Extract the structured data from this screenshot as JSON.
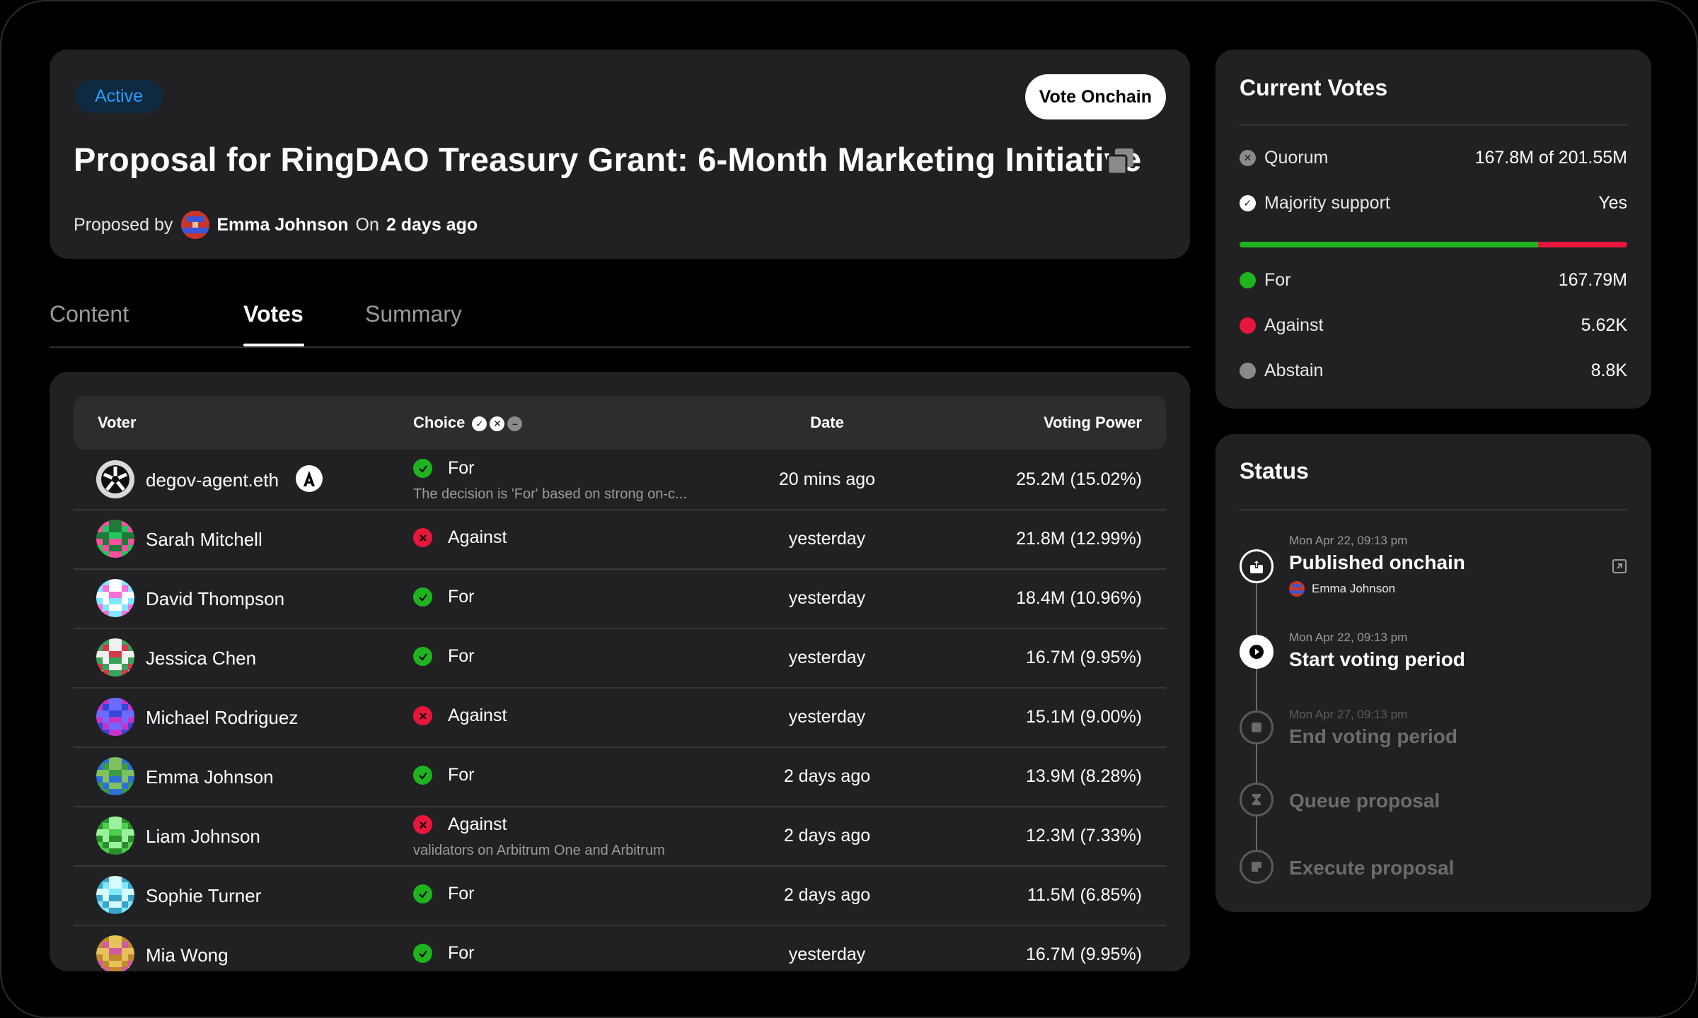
{
  "header": {
    "badge": "Active",
    "vote_button": "Vote Onchain",
    "title": "Proposal for RingDAO Treasury Grant: 6-Month Marketing Initiative",
    "proposed_by_label": "Proposed by",
    "author": "Emma Johnson",
    "on_label": "On",
    "when": "2 days ago"
  },
  "tabs": [
    "Content",
    "Votes",
    "Summary"
  ],
  "active_tab": "Votes",
  "votes_table": {
    "columns": {
      "voter": "Voter",
      "choice": "Choice",
      "date": "Date",
      "power": "Voting Power"
    },
    "rows": [
      {
        "voter": "degov-agent.eth",
        "choice": "For",
        "reason": "The decision is 'For' based on strong on-c...",
        "date": "20 mins ago",
        "power": "25.2M (15.02%)"
      },
      {
        "voter": "Sarah Mitchell",
        "choice": "Against",
        "reason": "",
        "date": "yesterday",
        "power": "21.8M (12.99%)"
      },
      {
        "voter": "David Thompson",
        "choice": "For",
        "reason": "",
        "date": "yesterday",
        "power": "18.4M (10.96%)"
      },
      {
        "voter": "Jessica Chen",
        "choice": "For",
        "reason": "",
        "date": "yesterday",
        "power": "16.7M (9.95%)"
      },
      {
        "voter": "Michael Rodriguez",
        "choice": "Against",
        "reason": "",
        "date": "yesterday",
        "power": "15.1M (9.00%)"
      },
      {
        "voter": "Emma Johnson",
        "choice": "For",
        "reason": "",
        "date": "2 days ago",
        "power": "13.9M (8.28%)"
      },
      {
        "voter": "Liam Johnson",
        "choice": "Against",
        "reason": "validators on Arbitrum One and Arbitrum",
        "date": "2 days ago",
        "power": "12.3M (7.33%)"
      },
      {
        "voter": "Sophie Turner",
        "choice": "For",
        "reason": "",
        "date": "2 days ago",
        "power": "11.5M (6.85%)"
      },
      {
        "voter": "Mia Wong",
        "choice": "For",
        "reason": "",
        "date": "yesterday",
        "power": "16.7M (9.95%)"
      }
    ]
  },
  "current_votes": {
    "title": "Current Votes",
    "quorum_label": "Quorum",
    "quorum_value": "167.8M of 201.55M",
    "majority_label": "Majority support",
    "majority_value": "Yes",
    "for_share": 0.77,
    "for_label": "For",
    "for_value": "167.79M",
    "against_label": "Against",
    "against_value": "5.62K",
    "abstain_label": "Abstain",
    "abstain_value": "8.8K",
    "colors": {
      "for": "#1fb41f",
      "against": "#e8163b",
      "abstain": "#8a8a8a"
    }
  },
  "status": {
    "title": "Status",
    "steps": [
      {
        "time": "Mon Apr 22, 09:13 pm",
        "title": "Published onchain",
        "by": "Emma Johnson",
        "state": "done"
      },
      {
        "time": "Mon Apr 22, 09:13 pm",
        "title": "Start voting period",
        "state": "current"
      },
      {
        "time": "Mon Apr 27, 09:13 pm",
        "title": "End voting period",
        "state": "pending"
      },
      {
        "time": "",
        "title": "Queue proposal",
        "state": "pending"
      },
      {
        "time": "",
        "title": "Execute proposal",
        "state": "pending"
      }
    ]
  }
}
